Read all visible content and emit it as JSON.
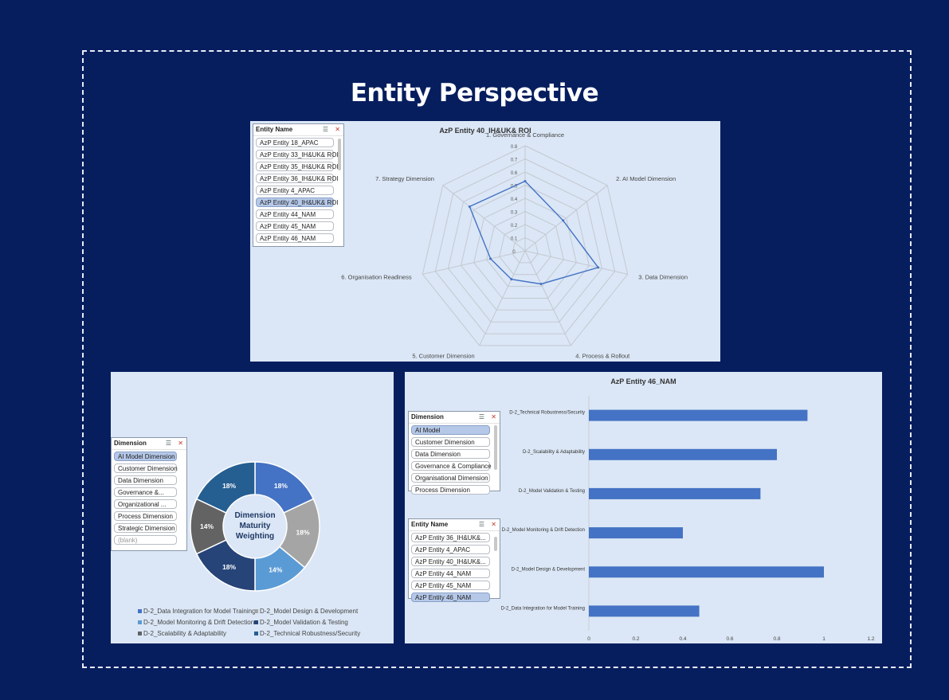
{
  "page": {
    "title": "Entity Perspective"
  },
  "radar": {
    "slicer": {
      "header": "Entity Name",
      "items": [
        {
          "label": "AzP Entity 18_APAC",
          "selected": false
        },
        {
          "label": "AzP Entity 33_IH&UK& ROI",
          "selected": false
        },
        {
          "label": "AzP Entity 35_IH&UK& ROI",
          "selected": false
        },
        {
          "label": "AzP Entity 36_IH&UK& ROI",
          "selected": false
        },
        {
          "label": "AzP Entity 4_APAC",
          "selected": false
        },
        {
          "label": "AzP Entity 40_IH&UK& ROI",
          "selected": true
        },
        {
          "label": "AzP Entity 44_NAM",
          "selected": false
        },
        {
          "label": "AzP Entity 45_NAM",
          "selected": false
        },
        {
          "label": "AzP Entity 46_NAM",
          "selected": false
        }
      ]
    },
    "chart_data": {
      "type": "radar",
      "title": "AzP Entity 40_IH&UK& ROI",
      "categories": [
        "1. Governance & Compliance",
        "2. AI Model Dimension",
        "3. Data Dimension",
        "4. Process & Rollout",
        "5. Customer Dimension",
        "6. Organisation Readiness",
        "7. Strategy Dimension"
      ],
      "series": [
        {
          "values": [
            0.53,
            0.37,
            0.57,
            0.28,
            0.24,
            0.27,
            0.54
          ],
          "color": "#4472c4"
        }
      ],
      "ticks": [
        "0",
        "0.1",
        "0.2",
        "0.3",
        "0.4",
        "0.5",
        "0.6",
        "0.7",
        "0.8"
      ],
      "rlim": [
        0,
        0.8
      ]
    }
  },
  "donut": {
    "slicer": {
      "header": "Dimension",
      "items": [
        {
          "label": "AI Model  Dimension",
          "selected": true
        },
        {
          "label": "Customer Dimension",
          "selected": false
        },
        {
          "label": "Data Dimension",
          "selected": false
        },
        {
          "label": "Governance &...",
          "selected": false
        },
        {
          "label": "Organizational ...",
          "selected": false
        },
        {
          "label": "Process Dimension",
          "selected": false
        },
        {
          "label": "Strategic Dimension",
          "selected": false
        },
        {
          "label": "(blank)",
          "selected": false
        }
      ]
    },
    "chart_data": {
      "type": "pie",
      "title": "Dimension Maturity Weighting",
      "center_lines": [
        "Dimension",
        "Maturity",
        "Weighting"
      ],
      "categories": [
        "D-2_Data Integration for Model Training",
        "D-2_Model Design & Development",
        "D-2_Model Monitoring & Drift Detection",
        "D-2_Model Validation & Testing",
        "D-2_Scalability & Adaptability",
        "D-2_Technical Robustness/Security"
      ],
      "values": [
        18,
        18,
        14,
        18,
        14,
        18
      ],
      "labels": [
        "18%",
        "18%",
        "14%",
        "18%",
        "14%",
        "18%"
      ],
      "colors": [
        "#4472c4",
        "#a5a5a5",
        "#5b9bd5",
        "#264478",
        "#636363",
        "#255e91"
      ],
      "legend": "bottom"
    }
  },
  "bar": {
    "dim_slicer": {
      "header": "Dimension",
      "items": [
        {
          "label": "AI Model",
          "selected": true
        },
        {
          "label": "Customer Dimension",
          "selected": false
        },
        {
          "label": "Data Dimension",
          "selected": false
        },
        {
          "label": "Governance & Compliance",
          "selected": false
        },
        {
          "label": "Organisational  Dimension",
          "selected": false
        },
        {
          "label": "Process Dimension",
          "selected": false
        }
      ]
    },
    "entity_slicer": {
      "header": "Entity Name",
      "items": [
        {
          "label": "AzP Entity 36_IH&UK&...",
          "selected": false
        },
        {
          "label": "AzP Entity 4_APAC",
          "selected": false
        },
        {
          "label": "AzP Entity 40_IH&UK&...",
          "selected": false
        },
        {
          "label": "AzP Entity 44_NAM",
          "selected": false
        },
        {
          "label": "AzP Entity 45_NAM",
          "selected": false
        },
        {
          "label": "AzP Entity 46_NAM",
          "selected": true
        }
      ]
    },
    "chart_data": {
      "type": "bar",
      "orientation": "horizontal",
      "title": "AzP Entity 46_NAM",
      "categories": [
        "D-2_Technical Robustness/Security",
        "D-2_Scalability & Adaptability",
        "D-2_Model Validation & Testing",
        "D-2_Model Monitoring & Drift Detection",
        "D-2_Model Design & Development",
        "D-2_Data Integration for Model Training"
      ],
      "values": [
        0.93,
        0.8,
        0.73,
        0.4,
        1.0,
        0.47
      ],
      "xticks": [
        "0",
        "0.2",
        "0.4",
        "0.6",
        "0.8",
        "1",
        "1.2"
      ],
      "xlim": [
        0,
        1.2
      ],
      "color": "#4472c4",
      "grid": false
    }
  }
}
